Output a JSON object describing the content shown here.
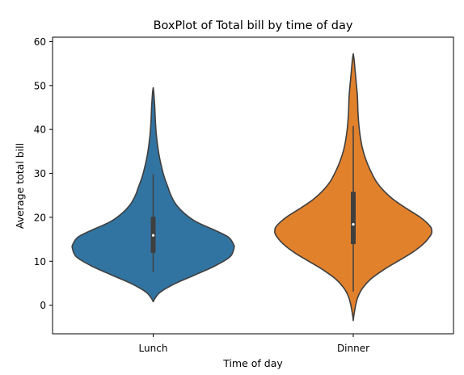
{
  "chart_data": {
    "type": "violin",
    "title": "BoxPlot of Total bill by time of day",
    "xlabel": "Time of day",
    "ylabel": "Average total bill",
    "ylim": [
      -6.5,
      61
    ],
    "yticks": [
      0,
      10,
      20,
      30,
      40,
      50,
      60
    ],
    "categories": [
      "Lunch",
      "Dinner"
    ],
    "grid": false,
    "series": [
      {
        "category": "Lunch",
        "color": "#3274a1",
        "range": [
          0.8,
          49.5
        ],
        "whisker": [
          7.5,
          29.8
        ],
        "q1": 11.9,
        "median": 15.9,
        "q3": 20.1,
        "density": [
          [
            0.8,
            0.0
          ],
          [
            1.5,
            0.02
          ],
          [
            3.0,
            0.09
          ],
          [
            5.0,
            0.28
          ],
          [
            7.0,
            0.53
          ],
          [
            9.0,
            0.77
          ],
          [
            11.0,
            0.95
          ],
          [
            13.0,
            1.0
          ],
          [
            14.0,
            0.99
          ],
          [
            15.5,
            0.93
          ],
          [
            17.0,
            0.77
          ],
          [
            19.0,
            0.53
          ],
          [
            21.0,
            0.38
          ],
          [
            23.0,
            0.28
          ],
          [
            25.0,
            0.22
          ],
          [
            27.0,
            0.18
          ],
          [
            29.0,
            0.14
          ],
          [
            31.0,
            0.11
          ],
          [
            33.0,
            0.085
          ],
          [
            35.0,
            0.065
          ],
          [
            37.0,
            0.05
          ],
          [
            39.0,
            0.038
          ],
          [
            41.0,
            0.03
          ],
          [
            43.0,
            0.024
          ],
          [
            45.0,
            0.02
          ],
          [
            47.0,
            0.013
          ],
          [
            48.5,
            0.007
          ],
          [
            49.5,
            0.0
          ]
        ]
      },
      {
        "category": "Dinner",
        "color": "#e1812c",
        "range": [
          -3.5,
          57.2
        ],
        "whisker": [
          3.1,
          40.8
        ],
        "q1": 13.9,
        "median": 18.4,
        "q3": 25.8,
        "density": [
          [
            -3.5,
            0.0
          ],
          [
            -2.5,
            0.006
          ],
          [
            0.0,
            0.03
          ],
          [
            2.0,
            0.06
          ],
          [
            4.0,
            0.12
          ],
          [
            6.0,
            0.22
          ],
          [
            8.0,
            0.37
          ],
          [
            10.0,
            0.55
          ],
          [
            12.0,
            0.73
          ],
          [
            14.0,
            0.87
          ],
          [
            16.0,
            0.96
          ],
          [
            17.0,
            0.97
          ],
          [
            18.0,
            0.95
          ],
          [
            20.0,
            0.83
          ],
          [
            22.0,
            0.66
          ],
          [
            24.0,
            0.5
          ],
          [
            26.0,
            0.38
          ],
          [
            28.0,
            0.29
          ],
          [
            30.0,
            0.23
          ],
          [
            32.0,
            0.18
          ],
          [
            34.0,
            0.14
          ],
          [
            36.0,
            0.11
          ],
          [
            38.0,
            0.09
          ],
          [
            40.0,
            0.075
          ],
          [
            42.0,
            0.065
          ],
          [
            44.0,
            0.058
          ],
          [
            46.0,
            0.055
          ],
          [
            48.0,
            0.05
          ],
          [
            50.0,
            0.04
          ],
          [
            52.0,
            0.03
          ],
          [
            54.0,
            0.02
          ],
          [
            56.0,
            0.01
          ],
          [
            57.2,
            0.0
          ]
        ]
      }
    ]
  }
}
